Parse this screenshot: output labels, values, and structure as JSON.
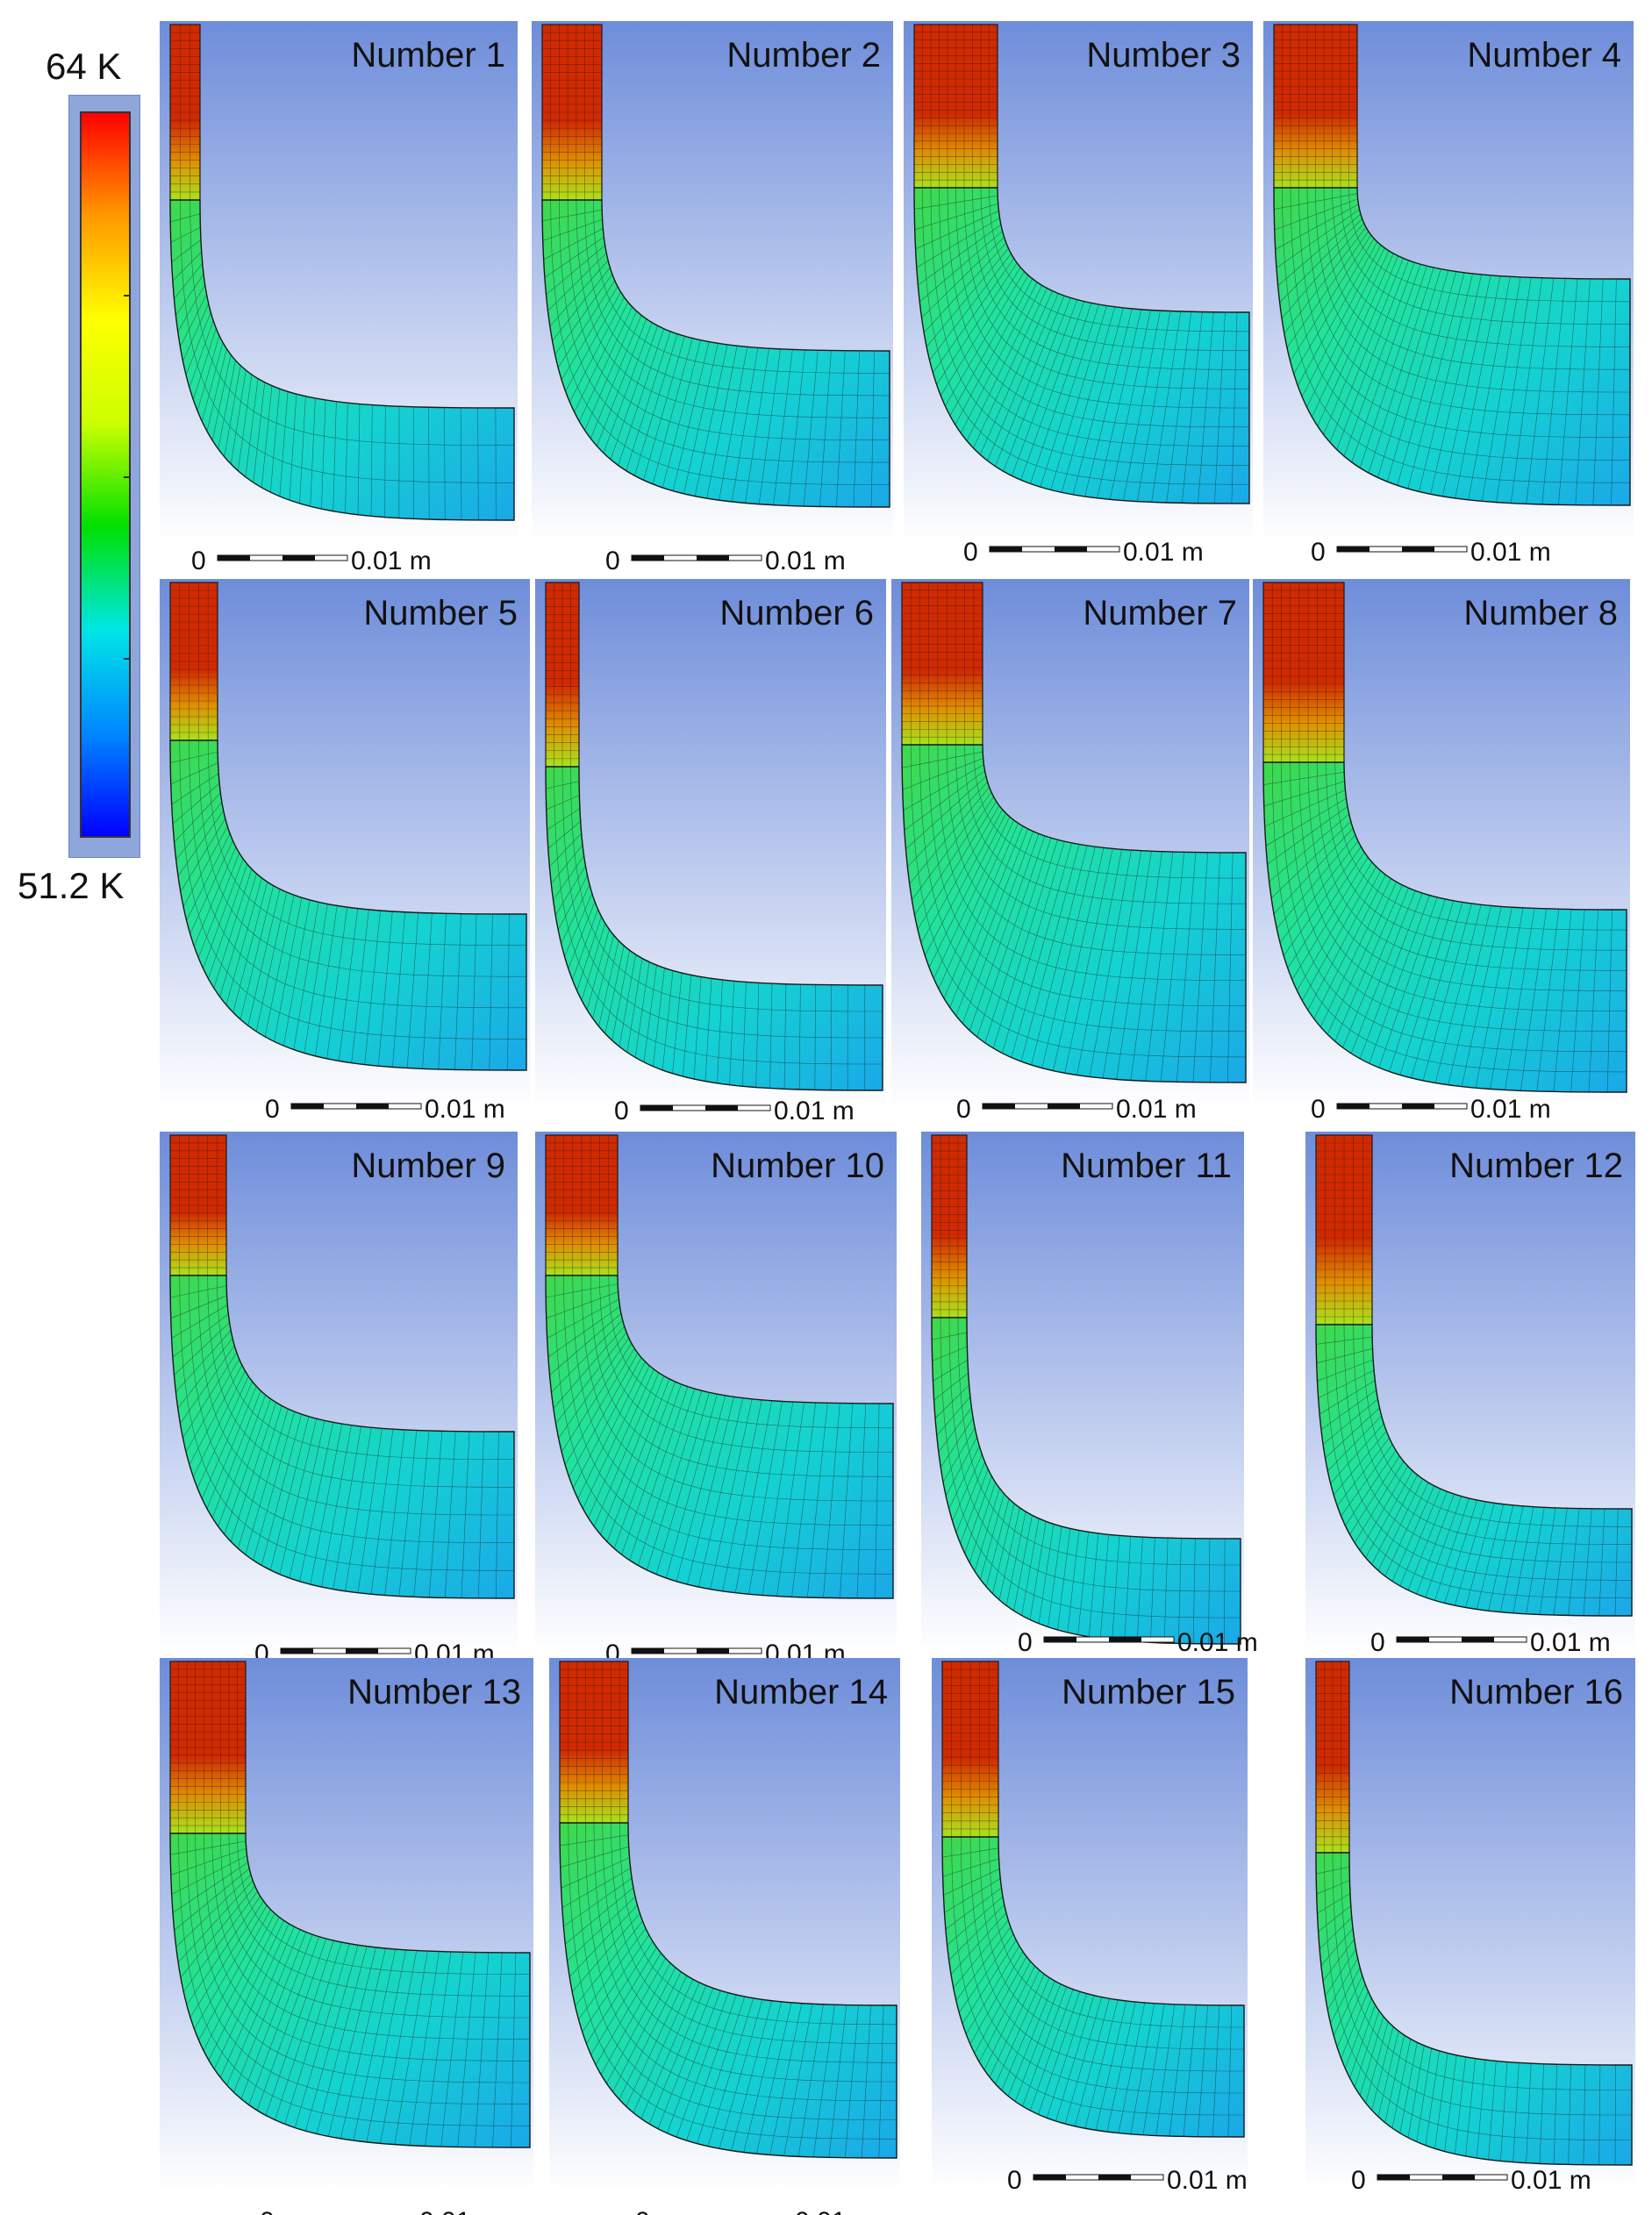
{
  "legend": {
    "max_label": "64  K",
    "min_label": "51.2  K",
    "colors": [
      "#0000ff",
      "#0088ff",
      "#00e6e6",
      "#00e000",
      "#ccff00",
      "#ffff00",
      "#ff9900",
      "#ff0000"
    ]
  },
  "colors": {
    "bg_top": "#6e8dda",
    "bg_bottom": "#ffffff",
    "tube_top": "#d12a00",
    "tube_mid": "#e09000",
    "tube_low": "#a9e21c",
    "neck": "#3fd94a",
    "bend": "#22e39a",
    "body": "#14d2d2",
    "body_low": "#1aa8e8",
    "mesh": "#1a1a1a"
  },
  "scale_bar": {
    "zero": "0",
    "length": "0.01 m"
  },
  "panels": [
    {
      "title": "Number 1"
    },
    {
      "title": "Number 2"
    },
    {
      "title": "Number 3"
    },
    {
      "title": "Number 4"
    },
    {
      "title": "Number 5"
    },
    {
      "title": "Number 6"
    },
    {
      "title": "Number 7"
    },
    {
      "title": "Number 8"
    },
    {
      "title": "Number 9"
    },
    {
      "title": "Number 10"
    },
    {
      "title": "Number 11"
    },
    {
      "title": "Number 12"
    },
    {
      "title": "Number 13"
    },
    {
      "title": "Number 14"
    },
    {
      "title": "Number 15"
    },
    {
      "title": "Number 16"
    }
  ]
}
